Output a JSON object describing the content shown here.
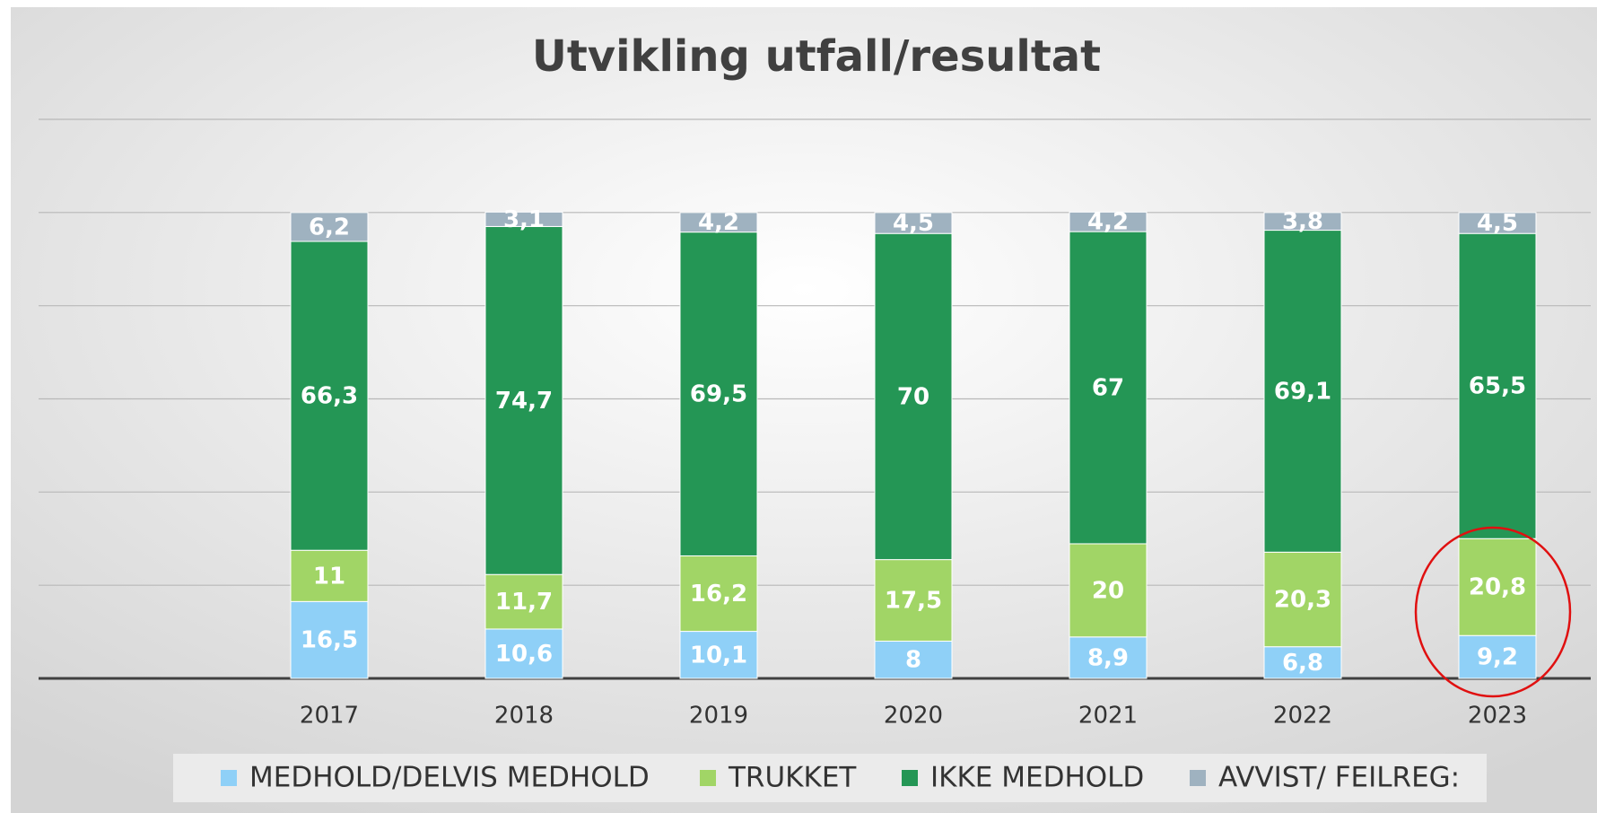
{
  "chart_data": {
    "type": "stacked_bar",
    "title": "Utvikling utfall/resultat",
    "categories": [
      "2017",
      "2018",
      "2019",
      "2020",
      "2021",
      "2022",
      "2023"
    ],
    "series": [
      {
        "name": "MEDHOLD/DELVIS MEDHOLD",
        "color": "#8fd0f7",
        "values": [
          16.5,
          10.6,
          10.1,
          8,
          8.9,
          6.8,
          9.2
        ],
        "value_labels": [
          "16,5",
          "10,6",
          "10,1",
          "8",
          "8,9",
          "6,8",
          "9,2"
        ]
      },
      {
        "name": "TRUKKET",
        "color": "#a1d566",
        "values": [
          11,
          11.7,
          16.2,
          17.5,
          20,
          20.3,
          20.8
        ],
        "value_labels": [
          "11",
          "11,7",
          "16,2",
          "17,5",
          "20",
          "20,3",
          "20,8"
        ]
      },
      {
        "name": "IKKE MEDHOLD",
        "color": "#249655",
        "values": [
          66.3,
          74.7,
          69.5,
          70,
          67,
          69.1,
          65.5
        ],
        "value_labels": [
          "66,3",
          "74,7",
          "69,5",
          "70",
          "67",
          "69,1",
          "65,5"
        ]
      },
      {
        "name": "AVVIST/ FEILREG:",
        "color": "#9fb2c0",
        "values": [
          6.2,
          3.1,
          4.2,
          4.5,
          4.2,
          3.8,
          4.5
        ],
        "value_labels": [
          "6,2",
          "3,1",
          "4,2",
          "4,5",
          "4,2",
          "3,8",
          "4,5"
        ]
      }
    ],
    "ylim": [
      0,
      120
    ],
    "yticks": [
      0,
      20,
      40,
      60,
      80,
      100,
      120
    ],
    "grid": true
  }
}
